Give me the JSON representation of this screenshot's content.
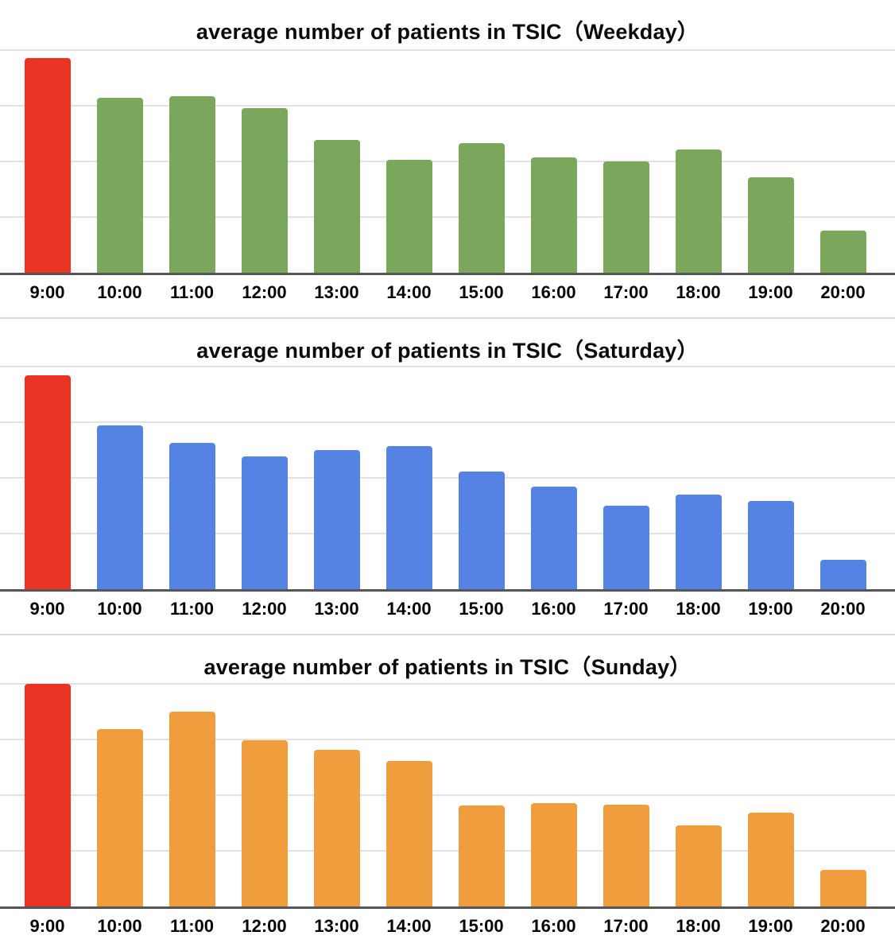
{
  "chart_data": [
    {
      "type": "bar",
      "title": "average number of patients in TSIC（Weekday）",
      "categories": [
        "9:00",
        "10:00",
        "11:00",
        "12:00",
        "13:00",
        "14:00",
        "15:00",
        "16:00",
        "17:00",
        "18:00",
        "19:00",
        "20:00"
      ],
      "values": [
        3.85,
        3.14,
        3.16,
        2.95,
        2.38,
        2.02,
        2.32,
        2.07,
        2.0,
        2.21,
        1.71,
        0.75
      ],
      "xlabel": "",
      "ylabel": "",
      "ylim": [
        0,
        4
      ],
      "gridline_step": 1,
      "grid": "horizontal-only",
      "y_tick_labels": "none",
      "legend": "none",
      "bar_color": "#7AA75C",
      "highlight_index": 0,
      "highlight_color": "#EA3423"
    },
    {
      "type": "bar",
      "title": "average number of patients in TSIC（Saturday）",
      "categories": [
        "9:00",
        "10:00",
        "11:00",
        "12:00",
        "13:00",
        "14:00",
        "15:00",
        "16:00",
        "17:00",
        "18:00",
        "19:00",
        "20:00"
      ],
      "values": [
        3.85,
        2.95,
        2.63,
        2.39,
        2.51,
        2.57,
        2.12,
        1.85,
        1.5,
        1.71,
        1.59,
        0.54
      ],
      "xlabel": "",
      "ylabel": "",
      "ylim": [
        0,
        4
      ],
      "gridline_step": 1,
      "grid": "horizontal-only",
      "y_tick_labels": "none",
      "legend": "none",
      "bar_color": "#5583E4",
      "highlight_index": 0,
      "highlight_color": "#EA3423"
    },
    {
      "type": "bar",
      "title": "average number of patients in TSIC（Sunday）",
      "categories": [
        "9:00",
        "10:00",
        "11:00",
        "12:00",
        "13:00",
        "14:00",
        "15:00",
        "16:00",
        "17:00",
        "18:00",
        "19:00",
        "20:00"
      ],
      "values": [
        4.0,
        3.18,
        3.5,
        2.99,
        2.82,
        2.62,
        1.81,
        1.85,
        1.83,
        1.46,
        1.69,
        0.65
      ],
      "xlabel": "",
      "ylabel": "",
      "ylim": [
        0,
        4
      ],
      "gridline_step": 1,
      "grid": "horizontal-only",
      "y_tick_labels": "none",
      "legend": "none",
      "bar_color": "#F09E3D",
      "highlight_index": 0,
      "highlight_color": "#EA3423"
    }
  ],
  "style": {
    "gridline_color": "#E2E2E2",
    "axis_line_color": "#565656",
    "panel_separator_color": "#DCDCDC",
    "title_text_color": "#0B0B0B",
    "tick_text_color": "#050505",
    "background_color": "#FFFFFF"
  }
}
